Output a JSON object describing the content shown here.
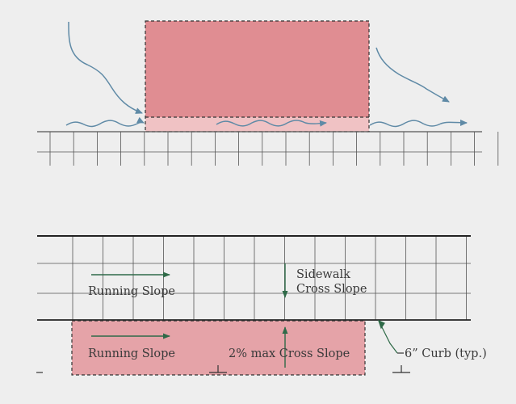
{
  "labels": {
    "running_slope_upper": "Running Slope",
    "sidewalk_cross_slope_line1": "Sidewalk",
    "sidewalk_cross_slope_line2": "Cross Slope",
    "running_slope_lower": "Running Slope",
    "max_cross_slope": "2% max Cross Slope",
    "curb_note": "6” Curb (typ.)"
  },
  "colors": {
    "background": "#eeeeee",
    "zone_fill": "#e08d92",
    "zone_fill_light": "#f0c2c4",
    "lower_zone_fill": "#e5a3a8",
    "water_flow": "#5f8aa6",
    "slope_arrow": "#2f6a48",
    "grid_line": "#555555",
    "curb_line": "#222222"
  }
}
